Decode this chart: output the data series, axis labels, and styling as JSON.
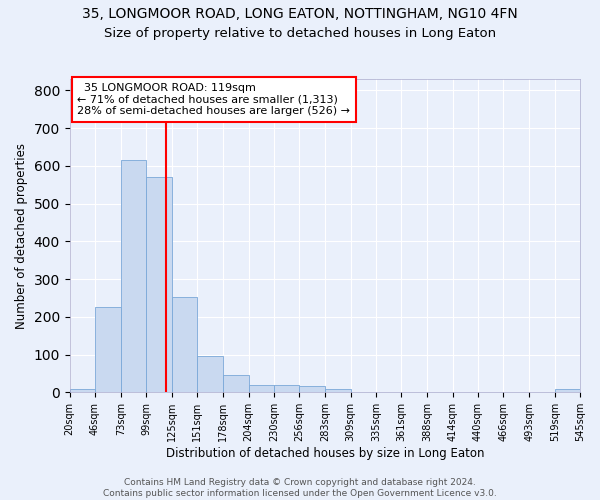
{
  "title": "35, LONGMOOR ROAD, LONG EATON, NOTTINGHAM, NG10 4FN",
  "subtitle": "Size of property relative to detached houses in Long Eaton",
  "xlabel": "Distribution of detached houses by size in Long Eaton",
  "ylabel": "Number of detached properties",
  "bin_edges": [
    20,
    46,
    73,
    99,
    125,
    151,
    178,
    204,
    230,
    256,
    283,
    309,
    335,
    361,
    388,
    414,
    440,
    466,
    493,
    519,
    545
  ],
  "bin_counts": [
    10,
    225,
    615,
    570,
    253,
    95,
    47,
    20,
    20,
    17,
    8,
    0,
    0,
    0,
    0,
    0,
    0,
    0,
    0,
    8
  ],
  "bar_color": "#c9d9f0",
  "bar_edge_color": "#7aa8d8",
  "property_size": 119,
  "vline_color": "red",
  "annotation_text": "  35 LONGMOOR ROAD: 119sqm\n← 71% of detached houses are smaller (1,313)\n28% of semi-detached houses are larger (526) →",
  "annotation_box_color": "white",
  "annotation_box_edge": "red",
  "ylim": [
    0,
    830
  ],
  "tick_labels": [
    "20sqm",
    "46sqm",
    "73sqm",
    "99sqm",
    "125sqm",
    "151sqm",
    "178sqm",
    "204sqm",
    "230sqm",
    "256sqm",
    "283sqm",
    "309sqm",
    "335sqm",
    "361sqm",
    "388sqm",
    "414sqm",
    "440sqm",
    "466sqm",
    "493sqm",
    "519sqm",
    "545sqm"
  ],
  "footer_text": "Contains HM Land Registry data © Crown copyright and database right 2024.\nContains public sector information licensed under the Open Government Licence v3.0.",
  "bg_color": "#eaf0fb",
  "grid_color": "white",
  "title_fontsize": 10,
  "subtitle_fontsize": 9.5,
  "xlabel_fontsize": 8.5,
  "ylabel_fontsize": 8.5,
  "tick_fontsize": 7,
  "footer_fontsize": 6.5,
  "annotation_fontsize": 8
}
